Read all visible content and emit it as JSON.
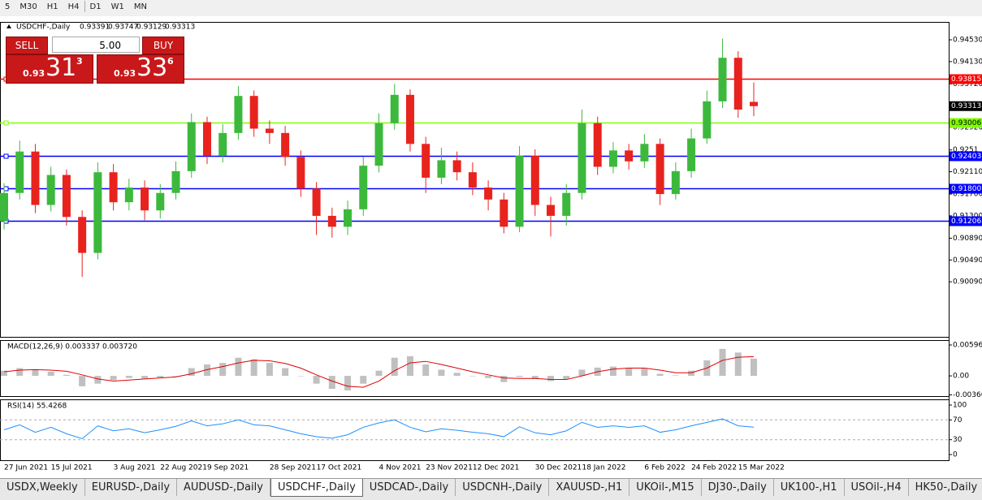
{
  "toolbar": {
    "timeframes": [
      "5",
      "M30",
      "H1",
      "H4",
      "D1",
      "W1",
      "MN"
    ]
  },
  "header": {
    "symbol": "USDCHF-,Daily",
    "open": "0.93391",
    "high": "0.93747",
    "low": "0.93129",
    "close": "0.93313"
  },
  "trade_panel": {
    "sell": "SELL",
    "buy": "BUY",
    "lots": "5.00",
    "sell_price": {
      "prefix": "0.93",
      "big": "31",
      "sup": "3"
    },
    "buy_price": {
      "prefix": "0.93",
      "big": "33",
      "sup": "6"
    }
  },
  "chart_data": [
    {
      "type": "candlestick",
      "x": [
        "27 Jun 2021",
        null,
        null,
        "15 Jul 2021",
        null,
        null,
        null,
        "3 Aug 2021",
        null,
        null,
        "22 Aug 2021",
        null,
        null,
        "9 Sep 2021",
        null,
        null,
        null,
        "28 Sep 2021",
        null,
        null,
        "17 Oct 2021",
        null,
        null,
        null,
        "4 Nov 2021",
        null,
        null,
        "23 Nov 2021",
        null,
        null,
        "12 Dec 2021",
        null,
        null,
        null,
        "30 Dec 2021",
        null,
        null,
        "18 Jan 2022",
        null,
        null,
        null,
        "6 Feb 2022",
        null,
        null,
        "24 Feb 2022",
        null,
        null,
        "15 Mar 2022",
        null
      ],
      "open": [
        0.912,
        0.9172,
        0.9248,
        0.915,
        0.9205,
        0.9128,
        0.9062,
        0.921,
        0.9155,
        0.9182,
        0.914,
        0.9172,
        0.9212,
        0.9302,
        0.924,
        0.9282,
        0.935,
        0.929,
        0.9282,
        0.9238,
        0.918,
        0.913,
        0.911,
        0.9142,
        0.9222,
        0.93,
        0.9352,
        0.9262,
        0.92,
        0.9232,
        0.921,
        0.9182,
        0.916,
        0.911,
        0.924,
        0.915,
        0.913,
        0.9172,
        0.93,
        0.922,
        0.925,
        0.923,
        0.9262,
        0.917,
        0.9212,
        0.9272,
        0.934,
        0.942,
        0.93391
      ],
      "high": [
        0.919,
        0.9268,
        0.9262,
        0.922,
        0.9215,
        0.914,
        0.9228,
        0.9225,
        0.9198,
        0.9195,
        0.9188,
        0.923,
        0.9318,
        0.9312,
        0.9298,
        0.9368,
        0.936,
        0.9305,
        0.9295,
        0.925,
        0.9192,
        0.9145,
        0.9158,
        0.9238,
        0.9318,
        0.9372,
        0.9362,
        0.9275,
        0.9255,
        0.9248,
        0.9228,
        0.9195,
        0.9172,
        0.9258,
        0.9252,
        0.9165,
        0.9188,
        0.9325,
        0.9312,
        0.9265,
        0.9262,
        0.928,
        0.9272,
        0.9228,
        0.929,
        0.936,
        0.9455,
        0.9432,
        0.93747
      ],
      "low": [
        0.9105,
        0.916,
        0.9135,
        0.9138,
        0.9112,
        0.9018,
        0.905,
        0.914,
        0.914,
        0.9122,
        0.9125,
        0.916,
        0.92,
        0.9225,
        0.9228,
        0.927,
        0.9275,
        0.9262,
        0.9222,
        0.9165,
        0.9095,
        0.909,
        0.9095,
        0.913,
        0.921,
        0.9288,
        0.9248,
        0.9172,
        0.9188,
        0.9195,
        0.9168,
        0.914,
        0.9098,
        0.91,
        0.913,
        0.9092,
        0.9112,
        0.916,
        0.9205,
        0.9208,
        0.9215,
        0.9218,
        0.915,
        0.916,
        0.92,
        0.9262,
        0.9328,
        0.931,
        0.93129
      ],
      "close": [
        0.9172,
        0.9248,
        0.915,
        0.9205,
        0.9128,
        0.9062,
        0.921,
        0.9155,
        0.9182,
        0.914,
        0.9172,
        0.9212,
        0.9302,
        0.924,
        0.9282,
        0.935,
        0.929,
        0.9282,
        0.9238,
        0.918,
        0.913,
        0.911,
        0.9142,
        0.9222,
        0.93,
        0.9352,
        0.9262,
        0.92,
        0.9232,
        0.921,
        0.9182,
        0.916,
        0.911,
        0.924,
        0.915,
        0.913,
        0.9172,
        0.93,
        0.922,
        0.925,
        0.923,
        0.9262,
        0.917,
        0.9212,
        0.9272,
        0.934,
        0.942,
        0.9325,
        0.93313
      ],
      "up_color": "#3cb93c",
      "down_color": "#e8231e",
      "ylim": [
        0.8908,
        0.94858
      ],
      "yticks": [
        {
          "value": 0.9453,
          "label": "0.94530"
        },
        {
          "value": 0.9413,
          "label": "0.94130"
        },
        {
          "value": 0.9372,
          "label": "0.93720"
        },
        {
          "value": 0.9292,
          "label": "0.92920"
        },
        0.9251,
        {
          "value": 0.9211,
          "label": "0.92110"
        },
        {
          "value": 0.917,
          "label": "0.91700"
        },
        {
          "value": 0.913,
          "label": "0.91300"
        },
        {
          "value": 0.9089,
          "label": "0.90890"
        },
        {
          "value": 0.9049,
          "label": "0.90490"
        },
        {
          "value": 0.9009,
          "label": "0.90090"
        }
      ],
      "levels": [
        {
          "value": 0.93815,
          "color": "#ff0000"
        },
        {
          "value": 0.93006,
          "color": "#7fff00"
        },
        {
          "value": 0.92403,
          "color": "#0000ff"
        },
        {
          "value": 0.918,
          "label": "0.91800",
          "color": "#0000ff"
        },
        {
          "value": 0.91206,
          "color": "#0000ff"
        }
      ],
      "last_price": 0.93313
    },
    {
      "type": "macd",
      "title": "MACD(12,26,9) 0.003337 0.003720",
      "values": [
        0.001,
        0.0015,
        0.0012,
        0.0008,
        0.0002,
        -0.002,
        -0.0015,
        -0.0008,
        -0.0004,
        -0.0005,
        -0.0003,
        0.0,
        0.0015,
        0.0022,
        0.0025,
        0.0035,
        0.0032,
        0.0025,
        0.0015,
        0.0,
        -0.0015,
        -0.0025,
        -0.0028,
        -0.0015,
        0.001,
        0.0035,
        0.0038,
        0.0022,
        0.0012,
        0.0006,
        0.0,
        -0.0004,
        -0.0012,
        -0.0002,
        -0.0006,
        -0.001,
        -0.0006,
        0.0012,
        0.0016,
        0.0018,
        0.0015,
        0.0014,
        0.0004,
        0.0001,
        0.001,
        0.003,
        0.0052,
        0.0045,
        0.003337
      ],
      "signal": [
        0.0008,
        0.0011,
        0.0012,
        0.0011,
        0.0009,
        0.0002,
        -0.0006,
        -0.001,
        -0.0008,
        -0.0006,
        -0.0004,
        -0.0002,
        0.0004,
        0.0012,
        0.0018,
        0.0025,
        0.003,
        0.0029,
        0.0024,
        0.0015,
        0.0002,
        -0.001,
        -0.002,
        -0.0022,
        -0.001,
        0.001,
        0.0025,
        0.0028,
        0.0022,
        0.0015,
        0.0008,
        0.0002,
        -0.0004,
        -0.0005,
        -0.0005,
        -0.0007,
        -0.0007,
        0.0,
        0.0008,
        0.0013,
        0.0015,
        0.0015,
        0.0011,
        0.0006,
        0.0006,
        0.0015,
        0.003,
        0.0036,
        0.00372
      ],
      "color": "#c0c0c0",
      "signal_color": "#e00000",
      "ylim": [
        -0.0039,
        0.0069
      ],
      "yticks": [
        0.005963,
        {
          "value": 0,
          "label": "0.00"
        },
        -0.003664
      ]
    },
    {
      "type": "rsi",
      "title": "RSI(14) 55.4268",
      "values": [
        50,
        60,
        45,
        55,
        42,
        32,
        58,
        48,
        52,
        44,
        50,
        57,
        68,
        58,
        62,
        70,
        60,
        58,
        50,
        42,
        36,
        33,
        40,
        55,
        64,
        70,
        55,
        46,
        52,
        49,
        45,
        42,
        36,
        56,
        44,
        40,
        48,
        65,
        55,
        58,
        55,
        58,
        45,
        50,
        58,
        65,
        72,
        58,
        55.4268
      ],
      "color": "#1e90ff",
      "ylim": [
        -11.5,
        111.5
      ],
      "yticks": [
        100,
        70,
        30,
        0
      ],
      "levels": [
        70,
        30
      ]
    }
  ],
  "tabs": [
    "USDX,Weekly",
    "EURUSD-,Daily",
    "AUDUSD-,Daily",
    "USDCHF-,Daily",
    "USDCAD-,Daily",
    "USDCNH-,Daily",
    "XAUUSD-,H1",
    "UKOil-,M15",
    "DJ30-,Daily",
    "UK100-,H1",
    "USOil-,H4",
    "HK50-,Daily"
  ]
}
